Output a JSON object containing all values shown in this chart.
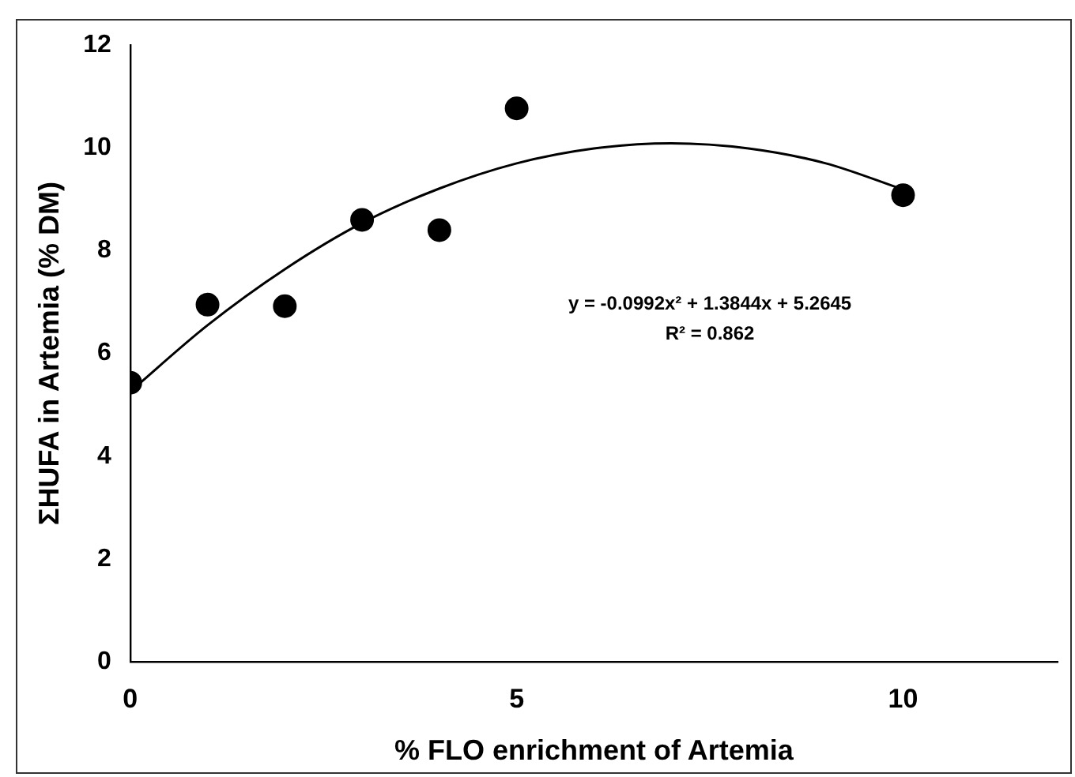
{
  "chart_data": {
    "type": "scatter",
    "xlabel": "% FLO enrichment of Artemia",
    "ylabel": "ΣHUFA in Artemia (% DM)",
    "xlim": [
      0,
      12
    ],
    "xticks": [
      0,
      5,
      10
    ],
    "ylim": [
      0,
      12
    ],
    "yticks": [
      0,
      2,
      4,
      6,
      8,
      10,
      12
    ],
    "grid": false,
    "legend": false,
    "marker": "circle",
    "series": [
      {
        "color": "#000000",
        "x": [
          0,
          1,
          2,
          3,
          4,
          5,
          10
        ],
        "values": [
          5.43,
          6.95,
          6.92,
          8.6,
          8.4,
          10.77,
          9.08
        ]
      },
      {
        "type": "line",
        "color": "#000000",
        "marker": "none",
        "x": [
          0,
          1,
          2,
          3,
          4,
          5,
          6,
          7,
          8,
          9,
          10
        ],
        "values": [
          5.26,
          6.55,
          7.64,
          8.54,
          9.21,
          9.7,
          9.99,
          10.09,
          9.99,
          9.7,
          9.19
        ]
      }
    ],
    "annotations": [
      "y = -0.0992x² + 1.3844x + 5.2645",
      "R² = 0.862"
    ]
  }
}
